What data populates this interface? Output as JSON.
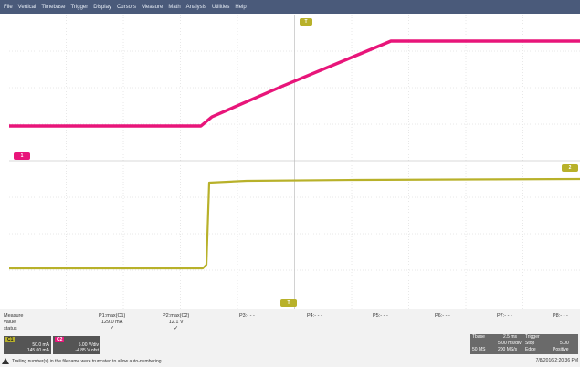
{
  "menu": [
    "File",
    "Vertical",
    "Timebase",
    "Trigger",
    "Display",
    "Cursors",
    "Measure",
    "Math",
    "Analysis",
    "Utilities",
    "Help"
  ],
  "colors": {
    "ch1": "#e8157a",
    "ch2": "#b8b12a",
    "menubar": "#4a5a7a",
    "grid": "#d8d8d8"
  },
  "screen": {
    "ch1_label": "1",
    "ch2_label": "2",
    "trigger_label": "T",
    "bottom_marker": "T"
  },
  "measure": {
    "header": [
      "Measure",
      "value",
      "status"
    ],
    "params": [
      {
        "name": "P1:max(C1)",
        "value": "129.0 mA",
        "status": "✓"
      },
      {
        "name": "P2:max(C2)",
        "value": "12.1 V",
        "status": "✓"
      },
      {
        "name": "P3:- - -",
        "value": "",
        "status": ""
      },
      {
        "name": "P4:- - -",
        "value": "",
        "status": ""
      },
      {
        "name": "P5:- - -",
        "value": "",
        "status": ""
      },
      {
        "name": "P6:- - -",
        "value": "",
        "status": ""
      },
      {
        "name": "P7:- - -",
        "value": "",
        "status": ""
      },
      {
        "name": "P8:- - -",
        "value": "",
        "status": ""
      }
    ]
  },
  "channels": {
    "c1": {
      "tag": "C1",
      "line1": "50.0 mA",
      "line2": "145.00 mA"
    },
    "c2": {
      "tag": "C2",
      "line1": "5.00 V/div",
      "line2": "-4.85 V ofst"
    }
  },
  "timebase": {
    "label": "Tbase",
    "t1": "2.5 ms",
    "t2": "5.00 ms/div",
    "t3": "50 MS",
    "t4": "200 MS/s",
    "trigger_label": "Trigger",
    "trig1": "Stop",
    "trig2": "Edge",
    "trig3": "5.00",
    "trig4": "Positive"
  },
  "footer": {
    "warning": "Trailing number(s) in the filename were truncated to allow auto-numbering",
    "timestamp": "7/8/2016 2:20:36 PM"
  }
}
